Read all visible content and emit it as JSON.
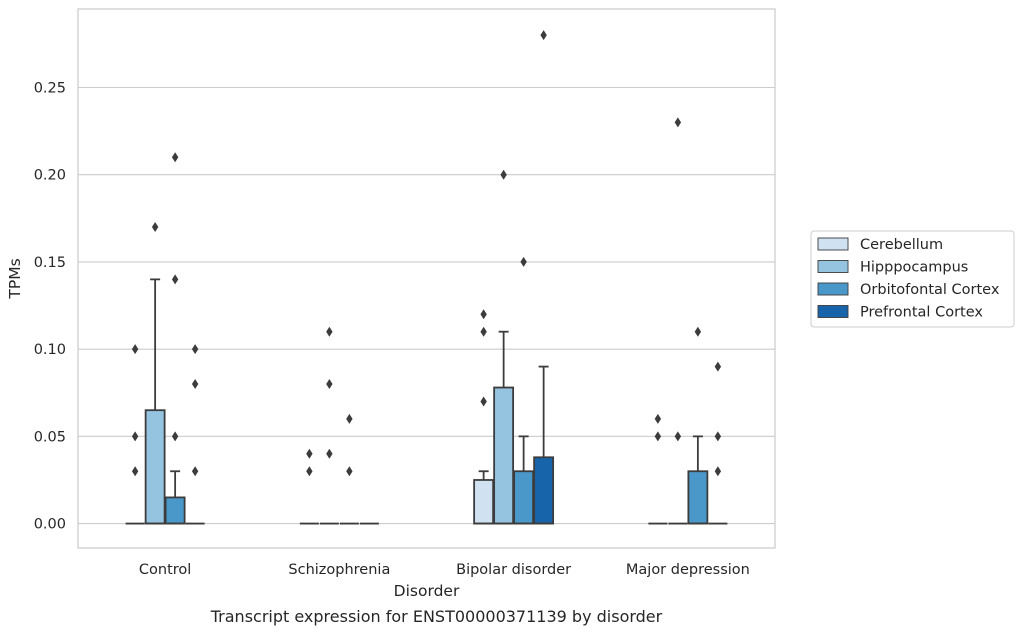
{
  "chart_data": {
    "type": "box",
    "title": "",
    "caption": "Transcript expression for ENST00000371139 by disorder",
    "xlabel": "Disorder",
    "ylabel": "TPMs",
    "categories": [
      "Control",
      "Schizophrenia",
      "Bipolar disorder",
      "Major depression"
    ],
    "ylim": [
      -0.014,
      0.295
    ],
    "yticks": [
      0.0,
      0.05,
      0.1,
      0.15,
      0.2,
      0.25
    ],
    "ytick_labels": [
      "0.00",
      "0.05",
      "0.10",
      "0.15",
      "0.20",
      "0.25"
    ],
    "grid": true,
    "legend_position": "right",
    "series": [
      {
        "name": "Cerebellum",
        "color": "#d0e1f2",
        "boxes": [
          {
            "category": "Control",
            "q1": 0.0,
            "median": 0.0,
            "q3": 0.0,
            "whisker_low": 0.0,
            "whisker_high": 0.0,
            "outliers": [
              0.03,
              0.05,
              0.1
            ]
          },
          {
            "category": "Schizophrenia",
            "q1": 0.0,
            "median": 0.0,
            "q3": 0.0,
            "whisker_low": 0.0,
            "whisker_high": 0.0,
            "outliers": [
              0.03,
              0.04
            ]
          },
          {
            "category": "Bipolar disorder",
            "q1": 0.0,
            "median": 0.0,
            "q3": 0.025,
            "whisker_low": 0.0,
            "whisker_high": 0.03,
            "outliers": [
              0.07,
              0.11,
              0.12
            ]
          },
          {
            "category": "Major depression",
            "q1": 0.0,
            "median": 0.0,
            "q3": 0.0,
            "whisker_low": 0.0,
            "whisker_high": 0.0,
            "outliers": [
              0.05,
              0.06
            ]
          }
        ]
      },
      {
        "name": "Hipppocampus",
        "color": "#94c4df",
        "boxes": [
          {
            "category": "Control",
            "q1": 0.0,
            "median": 0.0,
            "q3": 0.065,
            "whisker_low": 0.0,
            "whisker_high": 0.14,
            "outliers": [
              0.17
            ]
          },
          {
            "category": "Schizophrenia",
            "q1": 0.0,
            "median": 0.0,
            "q3": 0.0,
            "whisker_low": 0.0,
            "whisker_high": 0.0,
            "outliers": [
              0.04,
              0.08,
              0.11
            ]
          },
          {
            "category": "Bipolar disorder",
            "q1": 0.0,
            "median": 0.0,
            "q3": 0.078,
            "whisker_low": 0.0,
            "whisker_high": 0.11,
            "outliers": [
              0.2
            ]
          },
          {
            "category": "Major depression",
            "q1": 0.0,
            "median": 0.0,
            "q3": 0.0,
            "whisker_low": 0.0,
            "whisker_high": 0.0,
            "outliers": [
              0.05,
              0.23
            ]
          }
        ]
      },
      {
        "name": "Orbitofontal Cortex",
        "color": "#4a98c9",
        "boxes": [
          {
            "category": "Control",
            "q1": 0.0,
            "median": 0.0,
            "q3": 0.015,
            "whisker_low": 0.0,
            "whisker_high": 0.03,
            "outliers": [
              0.05,
              0.14,
              0.21
            ]
          },
          {
            "category": "Schizophrenia",
            "q1": 0.0,
            "median": 0.0,
            "q3": 0.0,
            "whisker_low": 0.0,
            "whisker_high": 0.0,
            "outliers": [
              0.03,
              0.06
            ]
          },
          {
            "category": "Bipolar disorder",
            "q1": 0.0,
            "median": 0.0,
            "q3": 0.03,
            "whisker_low": 0.0,
            "whisker_high": 0.05,
            "outliers": [
              0.15
            ]
          },
          {
            "category": "Major depression",
            "q1": 0.0,
            "median": 0.0,
            "q3": 0.03,
            "whisker_low": 0.0,
            "whisker_high": 0.05,
            "outliers": [
              0.11
            ]
          }
        ]
      },
      {
        "name": "Prefrontal Cortex",
        "color": "#1764ab",
        "boxes": [
          {
            "category": "Control",
            "q1": 0.0,
            "median": 0.0,
            "q3": 0.0,
            "whisker_low": 0.0,
            "whisker_high": 0.0,
            "outliers": [
              0.03,
              0.08,
              0.1
            ]
          },
          {
            "category": "Schizophrenia",
            "q1": 0.0,
            "median": 0.0,
            "q3": 0.0,
            "whisker_low": 0.0,
            "whisker_high": 0.0,
            "outliers": []
          },
          {
            "category": "Bipolar disorder",
            "q1": 0.0,
            "median": 0.0,
            "q3": 0.038,
            "whisker_low": 0.0,
            "whisker_high": 0.09,
            "outliers": [
              0.28
            ]
          },
          {
            "category": "Major depression",
            "q1": 0.0,
            "median": 0.0,
            "q3": 0.0,
            "whisker_low": 0.0,
            "whisker_high": 0.0,
            "outliers": [
              0.03,
              0.05,
              0.09
            ]
          }
        ]
      }
    ]
  }
}
